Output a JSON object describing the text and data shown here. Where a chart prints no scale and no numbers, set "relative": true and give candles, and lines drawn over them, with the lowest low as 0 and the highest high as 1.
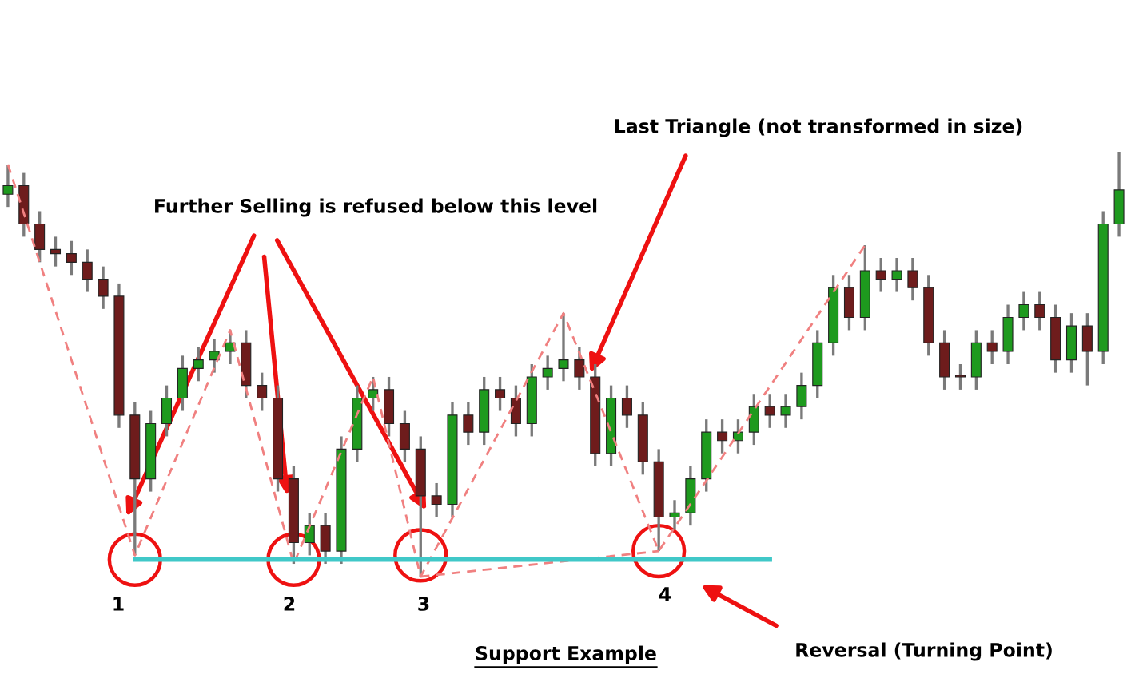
{
  "chart_data": {
    "type": "candlestick",
    "relative": true,
    "grid": false,
    "legend": false,
    "title": "Support Example",
    "categories": [
      null,
      null,
      null,
      null,
      null,
      null,
      null,
      null,
      null,
      null,
      null,
      null,
      null,
      null,
      null,
      null,
      null,
      null,
      null,
      null,
      null,
      null,
      null,
      null,
      null,
      null,
      null,
      null,
      null,
      null,
      null,
      null,
      null,
      null,
      null,
      null,
      null,
      null,
      null,
      null,
      null,
      null,
      null,
      null,
      null,
      null,
      null,
      null,
      null,
      null,
      null,
      null,
      null,
      null,
      null,
      null,
      null,
      null,
      null,
      null,
      null,
      null,
      null,
      null,
      null,
      null,
      null,
      null,
      null,
      null,
      null
    ],
    "ohlc": [
      [
        0.9,
        0.97,
        0.87,
        0.92
      ],
      [
        0.92,
        0.95,
        0.8,
        0.83
      ],
      [
        0.83,
        0.86,
        0.74,
        0.77
      ],
      [
        0.77,
        0.8,
        0.73,
        0.76
      ],
      [
        0.76,
        0.79,
        0.71,
        0.74
      ],
      [
        0.74,
        0.77,
        0.67,
        0.7
      ],
      [
        0.7,
        0.73,
        0.63,
        0.66
      ],
      [
        0.66,
        0.69,
        0.35,
        0.38
      ],
      [
        0.38,
        0.41,
        0.05,
        0.23
      ],
      [
        0.23,
        0.39,
        0.2,
        0.36
      ],
      [
        0.36,
        0.45,
        0.33,
        0.42
      ],
      [
        0.42,
        0.52,
        0.39,
        0.49
      ],
      [
        0.49,
        0.54,
        0.46,
        0.51
      ],
      [
        0.51,
        0.56,
        0.48,
        0.53
      ],
      [
        0.53,
        0.58,
        0.5,
        0.55
      ],
      [
        0.55,
        0.58,
        0.42,
        0.45
      ],
      [
        0.45,
        0.48,
        0.39,
        0.42
      ],
      [
        0.42,
        0.45,
        0.2,
        0.23
      ],
      [
        0.23,
        0.26,
        0.03,
        0.08
      ],
      [
        0.08,
        0.15,
        0.05,
        0.12
      ],
      [
        0.12,
        0.15,
        0.03,
        0.06
      ],
      [
        0.06,
        0.33,
        0.03,
        0.3
      ],
      [
        0.3,
        0.45,
        0.27,
        0.42
      ],
      [
        0.42,
        0.47,
        0.39,
        0.44
      ],
      [
        0.44,
        0.47,
        0.33,
        0.36
      ],
      [
        0.36,
        0.39,
        0.27,
        0.3
      ],
      [
        0.3,
        0.33,
        0.0,
        0.19
      ],
      [
        0.19,
        0.22,
        0.14,
        0.17
      ],
      [
        0.17,
        0.41,
        0.14,
        0.38
      ],
      [
        0.38,
        0.41,
        0.31,
        0.34
      ],
      [
        0.34,
        0.47,
        0.31,
        0.44
      ],
      [
        0.44,
        0.47,
        0.39,
        0.42
      ],
      [
        0.42,
        0.45,
        0.33,
        0.36
      ],
      [
        0.36,
        0.5,
        0.33,
        0.47
      ],
      [
        0.47,
        0.52,
        0.44,
        0.49
      ],
      [
        0.49,
        0.62,
        0.46,
        0.51
      ],
      [
        0.51,
        0.54,
        0.44,
        0.47
      ],
      [
        0.47,
        0.5,
        0.26,
        0.29
      ],
      [
        0.29,
        0.45,
        0.26,
        0.42
      ],
      [
        0.42,
        0.45,
        0.35,
        0.38
      ],
      [
        0.38,
        0.41,
        0.24,
        0.27
      ],
      [
        0.27,
        0.3,
        0.06,
        0.14
      ],
      [
        0.14,
        0.18,
        0.11,
        0.15
      ],
      [
        0.15,
        0.26,
        0.12,
        0.23
      ],
      [
        0.23,
        0.37,
        0.2,
        0.34
      ],
      [
        0.34,
        0.37,
        0.29,
        0.32
      ],
      [
        0.32,
        0.37,
        0.29,
        0.34
      ],
      [
        0.34,
        0.43,
        0.31,
        0.4
      ],
      [
        0.4,
        0.43,
        0.35,
        0.38
      ],
      [
        0.38,
        0.43,
        0.35,
        0.4
      ],
      [
        0.4,
        0.48,
        0.37,
        0.45
      ],
      [
        0.45,
        0.58,
        0.42,
        0.55
      ],
      [
        0.55,
        0.71,
        0.52,
        0.68
      ],
      [
        0.68,
        0.71,
        0.58,
        0.61
      ],
      [
        0.61,
        0.78,
        0.58,
        0.72
      ],
      [
        0.72,
        0.75,
        0.67,
        0.7
      ],
      [
        0.7,
        0.75,
        0.67,
        0.72
      ],
      [
        0.72,
        0.75,
        0.65,
        0.68
      ],
      [
        0.68,
        0.71,
        0.52,
        0.55
      ],
      [
        0.55,
        0.58,
        0.44,
        0.47
      ],
      [
        0.47,
        0.5,
        0.44,
        0.47
      ],
      [
        0.47,
        0.58,
        0.44,
        0.55
      ],
      [
        0.55,
        0.58,
        0.5,
        0.53
      ],
      [
        0.53,
        0.64,
        0.5,
        0.61
      ],
      [
        0.61,
        0.67,
        0.58,
        0.64
      ],
      [
        0.64,
        0.67,
        0.58,
        0.61
      ],
      [
        0.61,
        0.64,
        0.48,
        0.51
      ],
      [
        0.51,
        0.62,
        0.48,
        0.59
      ],
      [
        0.59,
        0.62,
        0.45,
        0.53
      ],
      [
        0.53,
        0.86,
        0.5,
        0.83
      ],
      [
        0.83,
        1.0,
        0.8,
        0.91
      ]
    ],
    "colors": [
      "#1e9a1e",
      "#6e1c1c",
      "#6e1c1c",
      "#6e1c1c",
      "#6e1c1c",
      "#6e1c1c",
      "#6e1c1c",
      "#6e1c1c",
      "#6e1c1c",
      "#1e9a1e",
      "#1e9a1e",
      "#1e9a1e",
      "#1e9a1e",
      "#1e9a1e",
      "#1e9a1e",
      "#6e1c1c",
      "#6e1c1c",
      "#6e1c1c",
      "#6e1c1c",
      "#1e9a1e",
      "#6e1c1c",
      "#1e9a1e",
      "#1e9a1e",
      "#1e9a1e",
      "#6e1c1c",
      "#6e1c1c",
      "#6e1c1c",
      "#6e1c1c",
      "#1e9a1e",
      "#6e1c1c",
      "#1e9a1e",
      "#6e1c1c",
      "#6e1c1c",
      "#1e9a1e",
      "#1e9a1e",
      "#1e9a1e",
      "#6e1c1c",
      "#6e1c1c",
      "#1e9a1e",
      "#6e1c1c",
      "#6e1c1c",
      "#6e1c1c",
      "#1e9a1e",
      "#1e9a1e",
      "#1e9a1e",
      "#6e1c1c",
      "#1e9a1e",
      "#1e9a1e",
      "#6e1c1c",
      "#1e9a1e",
      "#1e9a1e",
      "#1e9a1e",
      "#1e9a1e",
      "#6e1c1c",
      "#1e9a1e",
      "#6e1c1c",
      "#1e9a1e",
      "#6e1c1c",
      "#6e1c1c",
      "#6e1c1c",
      "#6e1c1c",
      "#1e9a1e",
      "#6e1c1c",
      "#1e9a1e",
      "#1e9a1e",
      "#6e1c1c",
      "#6e1c1c",
      "#1e9a1e",
      "#6e1c1c",
      "#1e9a1e",
      "#1e9a1e"
    ],
    "series": [
      {
        "type": "line",
        "color": "#f08080",
        "line_style": "dashed",
        "values": [
          0.97,
          null,
          null,
          null,
          null,
          null,
          null,
          null,
          0.05,
          null,
          null,
          null,
          null,
          null,
          0.58,
          null,
          null,
          null,
          0.03,
          null,
          null,
          null,
          null,
          0.47,
          null,
          null,
          0.0,
          null,
          null,
          null,
          null,
          null,
          null,
          null,
          null,
          0.62,
          null,
          null,
          null,
          null,
          null,
          0.06,
          null,
          null,
          null,
          null,
          null,
          null,
          null,
          null,
          null,
          null,
          null,
          null,
          0.78,
          null,
          null,
          null,
          null,
          null,
          null,
          null,
          null,
          null,
          null,
          null,
          null,
          null,
          null,
          null,
          null
        ]
      },
      {
        "type": "line",
        "color": "#f08080",
        "line_style": "dashed",
        "values": [
          null,
          null,
          null,
          null,
          null,
          null,
          null,
          null,
          null,
          null,
          null,
          null,
          null,
          null,
          null,
          null,
          null,
          null,
          null,
          null,
          null,
          null,
          null,
          null,
          null,
          null,
          0.0,
          null,
          null,
          null,
          null,
          null,
          null,
          null,
          null,
          null,
          null,
          null,
          null,
          null,
          null,
          0.06,
          null,
          null,
          null,
          null,
          null,
          null,
          null,
          null,
          null,
          null,
          null,
          null,
          null,
          null,
          null,
          null,
          null,
          null,
          null,
          null,
          null,
          null,
          null,
          null,
          null,
          null,
          null,
          null,
          null
        ]
      },
      {
        "type": "scatter",
        "color": "#ee1111",
        "marker": "circle",
        "values": [
          null,
          null,
          null,
          null,
          null,
          null,
          null,
          null,
          0.04,
          null,
          null,
          null,
          null,
          null,
          null,
          null,
          null,
          null,
          0.04,
          null,
          null,
          null,
          null,
          null,
          null,
          null,
          0.05,
          null,
          null,
          null,
          null,
          null,
          null,
          null,
          null,
          null,
          null,
          null,
          null,
          null,
          null,
          0.06,
          null,
          null,
          null,
          null,
          null,
          null,
          null,
          null,
          null,
          null,
          null,
          null,
          null,
          null,
          null,
          null,
          null,
          null,
          null,
          null,
          null,
          null,
          null,
          null,
          null,
          null,
          null,
          null,
          null
        ]
      },
      {
        "type": "line",
        "color": "#40c8c8",
        "line_style": "solid",
        "values": [
          null,
          null,
          null,
          null,
          null,
          null,
          null,
          null,
          0.04,
          0.04,
          0.04,
          0.04,
          0.04,
          0.04,
          0.04,
          0.04,
          0.04,
          0.04,
          0.04,
          0.04,
          0.04,
          0.04,
          0.04,
          0.04,
          0.04,
          0.04,
          0.04,
          0.04,
          0.04,
          0.04,
          0.04,
          0.04,
          0.04,
          0.04,
          0.04,
          0.04,
          0.04,
          0.04,
          0.04,
          0.04,
          0.04,
          0.04,
          0.04,
          0.04,
          0.04,
          0.04,
          0.04,
          0.04,
          0.04,
          null,
          null,
          null,
          null,
          null,
          null,
          null,
          null,
          null,
          null,
          null,
          null,
          null,
          null,
          null,
          null,
          null,
          null,
          null,
          null,
          null,
          null
        ]
      }
    ],
    "annotations": [
      "Further Selling is refused below this level",
      "Last Triangle (not transformed in size)",
      "Reversal (Turning Point)",
      "1",
      "2",
      "3",
      "4"
    ]
  }
}
